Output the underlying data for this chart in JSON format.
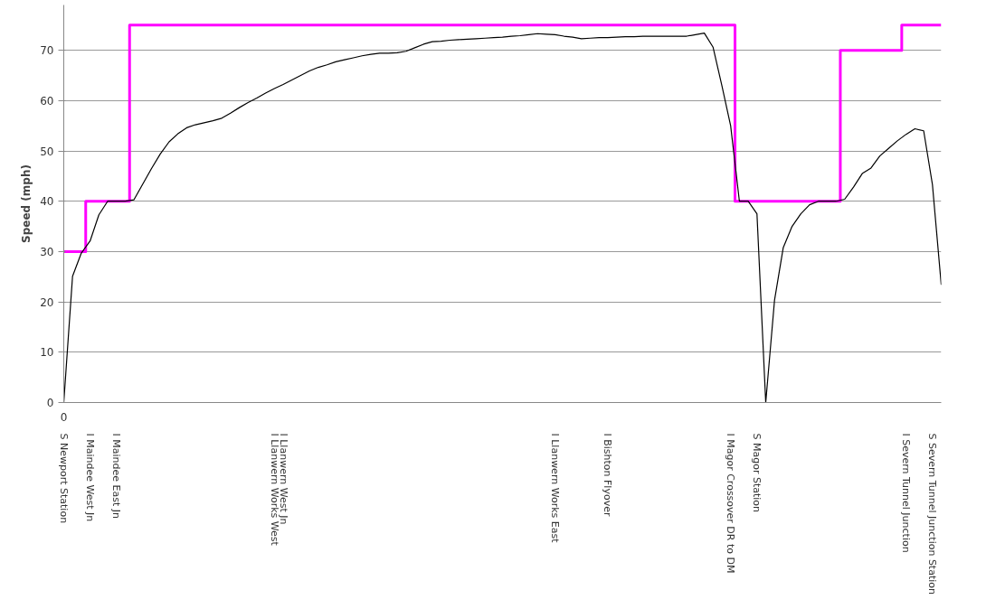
{
  "chart_data": {
    "type": "line",
    "ylabel": "Speed (mph)",
    "ylim": [
      0,
      79
    ],
    "yticks": [
      0,
      10,
      20,
      30,
      40,
      50,
      60,
      70
    ],
    "grid": "y",
    "categories": [
      "S Newport Station",
      null,
      null,
      "I Maindee West Jn",
      null,
      null,
      "I Maindee East Jn",
      null,
      null,
      null,
      null,
      null,
      null,
      null,
      null,
      null,
      null,
      null,
      null,
      null,
      null,
      null,
      null,
      null,
      "I Llanwern Works West",
      "I Llanwern West Jn",
      null,
      null,
      null,
      null,
      null,
      null,
      null,
      null,
      null,
      null,
      null,
      null,
      null,
      null,
      null,
      null,
      null,
      null,
      null,
      null,
      null,
      null,
      null,
      null,
      null,
      null,
      null,
      null,
      null,
      null,
      "I Llanwern Works East",
      null,
      null,
      null,
      null,
      null,
      "I Bishton Flyover",
      null,
      null,
      null,
      null,
      null,
      null,
      null,
      null,
      null,
      null,
      null,
      null,
      null,
      "I Magor Crossover DR to DM",
      null,
      null,
      "S Magor Station",
      null,
      null,
      null,
      null,
      null,
      null,
      null,
      null,
      null,
      null,
      null,
      null,
      null,
      null,
      null,
      null,
      "I Severn Tunnel Junction",
      null,
      null,
      "S Severn Tunnel Junction Station",
      null
    ],
    "series": [
      {
        "type": "step",
        "color": "#ff00ff",
        "values": [
          30,
          30,
          30,
          40,
          40,
          40,
          40,
          40,
          75,
          75,
          75,
          75,
          75,
          75,
          75,
          75,
          75,
          75,
          75,
          75,
          75,
          75,
          75,
          75,
          75,
          75,
          75,
          75,
          75,
          75,
          75,
          75,
          75,
          75,
          75,
          75,
          75,
          75,
          75,
          75,
          75,
          75,
          75,
          75,
          75,
          75,
          75,
          75,
          75,
          75,
          75,
          75,
          75,
          75,
          75,
          75,
          75,
          75,
          75,
          75,
          75,
          75,
          75,
          75,
          75,
          75,
          75,
          75,
          75,
          75,
          75,
          75,
          75,
          75,
          75,
          75,
          75,
          40,
          40,
          40,
          40,
          40,
          40,
          40,
          40,
          40,
          40,
          40,
          40,
          70,
          70,
          70,
          70,
          70,
          70,
          70,
          75,
          75,
          75,
          75,
          75
        ]
      },
      {
        "color": "#000000",
        "values": [
          0,
          25.1,
          29.7,
          32.1,
          37.3,
          40,
          40,
          40,
          40.3,
          43.4,
          46.5,
          49.4,
          51.8,
          53.4,
          54.6,
          55.2,
          55.6,
          56.0,
          56.5,
          57.5,
          58.6,
          59.6,
          60.5,
          61.5,
          62.4,
          63.2,
          64.1,
          65.0,
          65.9,
          66.6,
          67.1,
          67.7,
          68.1,
          68.5,
          68.9,
          69.2,
          69.4,
          69.4,
          69.5,
          69.8,
          70.5,
          71.2,
          71.7,
          71.8,
          72.0,
          72.1,
          72.2,
          72.3,
          72.4,
          72.5,
          72.6,
          72.8,
          72.9,
          73.1,
          73.3,
          73.2,
          73.1,
          72.8,
          72.6,
          72.3,
          72.4,
          72.5,
          72.5,
          72.6,
          72.7,
          72.7,
          72.8,
          72.8,
          72.8,
          72.8,
          72.8,
          72.8,
          73.1,
          73.4,
          70.6,
          63.0,
          55.0,
          40,
          40,
          37.5,
          0,
          20.3,
          30.8,
          35.0,
          37.5,
          39.3,
          40,
          40,
          40,
          40.4,
          42.8,
          45.5,
          46.6,
          49.0,
          50.5,
          52.0,
          53.3,
          54.4,
          54.0,
          43.3,
          23.4
        ]
      }
    ],
    "annotations": [
      "0"
    ]
  }
}
